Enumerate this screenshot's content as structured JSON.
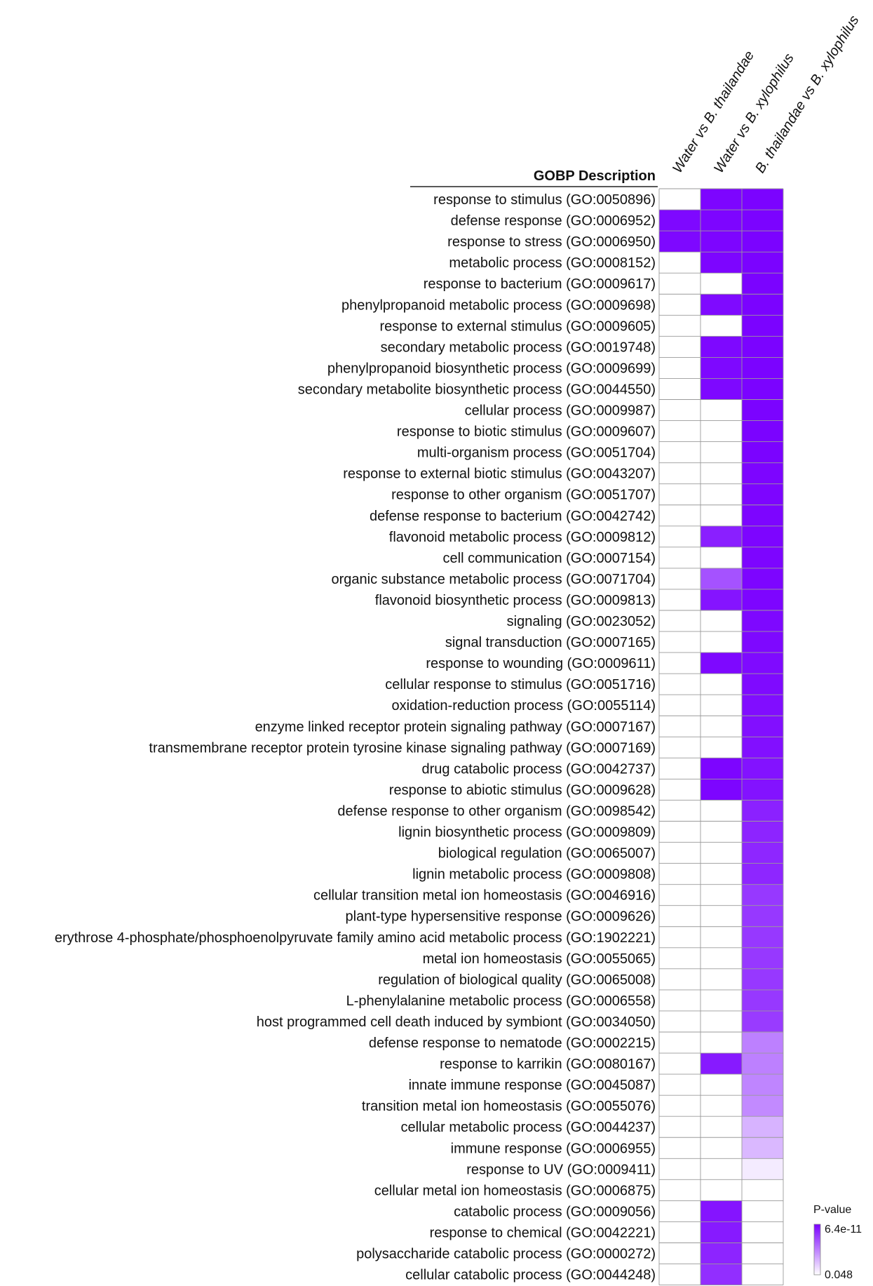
{
  "chart_data": {
    "type": "heatmap",
    "header": "GOBP Description",
    "columns": [
      "Water vs B. thailandae",
      "Water vs B. xylophilus",
      "B. thailandae vs B. xylophilus"
    ],
    "rows": [
      "response to stimulus (GO:0050896)",
      "defense response (GO:0006952)",
      "response to stress (GO:0006950)",
      "metabolic process (GO:0008152)",
      "response to bacterium (GO:0009617)",
      "phenylpropanoid metabolic process (GO:0009698)",
      "response to external stimulus (GO:0009605)",
      "secondary metabolic process (GO:0019748)",
      "phenylpropanoid biosynthetic process (GO:0009699)",
      "secondary metabolite biosynthetic process (GO:0044550)",
      "cellular process (GO:0009987)",
      "response to biotic stimulus (GO:0009607)",
      "multi-organism process (GO:0051704)",
      "response to external biotic stimulus (GO:0043207)",
      "response to other organism (GO:0051707)",
      "defense response to bacterium (GO:0042742)",
      "flavonoid metabolic process (GO:0009812)",
      "cell communication (GO:0007154)",
      "organic substance metabolic process (GO:0071704)",
      "flavonoid biosynthetic process (GO:0009813)",
      "signaling (GO:0023052)",
      "signal transduction (GO:0007165)",
      "response to wounding (GO:0009611)",
      "cellular response to stimulus (GO:0051716)",
      "oxidation-reduction process (GO:0055114)",
      "enzyme linked receptor protein signaling pathway (GO:0007167)",
      "transmembrane receptor protein tyrosine kinase signaling pathway (GO:0007169)",
      "drug catabolic process (GO:0042737)",
      "response to abiotic stimulus (GO:0009628)",
      "defense response to other organism (GO:0098542)",
      "lignin biosynthetic process (GO:0009809)",
      "biological regulation (GO:0065007)",
      "lignin metabolic process (GO:0009808)",
      "cellular transition metal ion homeostasis (GO:0046916)",
      "plant-type hypersensitive response (GO:0009626)",
      "erythrose 4-phosphate/phosphoenolpyruvate family amino acid metabolic process (GO:1902221)",
      "metal ion homeostasis (GO:0055065)",
      "regulation of biological quality (GO:0065008)",
      "L-phenylalanine metabolic process (GO:0006558)",
      "host programmed cell death induced by symbiont (GO:0034050)",
      "defense response to nematode (GO:0002215)",
      "response to karrikin (GO:0080167)",
      "innate immune response (GO:0045087)",
      "transition metal ion homeostasis (GO:0055076)",
      "cellular metabolic process (GO:0044237)",
      "immune response (GO:0006955)",
      "response to UV (GO:0009411)",
      "cellular metal ion homeostasis (GO:0006875)",
      "catabolic process (GO:0009056)",
      "response to chemical (GO:0042221)",
      "polysaccharide catabolic process (GO:0000272)",
      "cellular catabolic process (GO:0044248)"
    ],
    "intensity": [
      [
        0,
        0.98,
        0.99
      ],
      [
        0.97,
        0.98,
        0.99
      ],
      [
        0.97,
        0.98,
        0.99
      ],
      [
        0,
        0.98,
        0.99
      ],
      [
        0,
        0,
        0.99
      ],
      [
        0,
        0.96,
        0.99
      ],
      [
        0,
        0,
        0.99
      ],
      [
        0,
        0.97,
        0.99
      ],
      [
        0,
        0.97,
        0.99
      ],
      [
        0,
        0.97,
        0.99
      ],
      [
        0,
        0,
        0.99
      ],
      [
        0,
        0,
        0.99
      ],
      [
        0,
        0,
        0.99
      ],
      [
        0,
        0,
        0.98
      ],
      [
        0,
        0,
        0.98
      ],
      [
        0,
        0,
        0.98
      ],
      [
        0,
        0.88,
        0.98
      ],
      [
        0,
        0,
        0.98
      ],
      [
        0,
        0.68,
        0.98
      ],
      [
        0,
        0.92,
        0.98
      ],
      [
        0,
        0,
        0.97
      ],
      [
        0,
        0,
        0.97
      ],
      [
        0,
        0.97,
        0.96
      ],
      [
        0,
        0,
        0.96
      ],
      [
        0,
        0,
        0.95
      ],
      [
        0,
        0,
        0.94
      ],
      [
        0,
        0,
        0.94
      ],
      [
        0,
        0.98,
        0.93
      ],
      [
        0,
        0.98,
        0.93
      ],
      [
        0,
        0,
        0.87
      ],
      [
        0,
        0,
        0.86
      ],
      [
        0,
        0,
        0.85
      ],
      [
        0,
        0,
        0.85
      ],
      [
        0,
        0,
        0.78
      ],
      [
        0,
        0,
        0.78
      ],
      [
        0,
        0,
        0.78
      ],
      [
        0,
        0,
        0.78
      ],
      [
        0,
        0,
        0.78
      ],
      [
        0,
        0,
        0.78
      ],
      [
        0,
        0,
        0.77
      ],
      [
        0,
        0,
        0.5
      ],
      [
        0,
        0.9,
        0.5
      ],
      [
        0,
        0,
        0.48
      ],
      [
        0,
        0,
        0.46
      ],
      [
        0,
        0,
        0.3
      ],
      [
        0,
        0,
        0.28
      ],
      [
        0,
        0,
        0.08
      ],
      [
        0,
        0,
        0
      ],
      [
        0,
        0.92,
        0
      ],
      [
        0,
        0.9,
        0
      ],
      [
        0,
        0.86,
        0
      ],
      [
        0,
        0.82,
        0
      ]
    ],
    "color_scale": {
      "high": "#7a00ff",
      "low": "#ffffff",
      "grid": "#9a9a9a"
    },
    "legend": {
      "title": "P-value",
      "max_label": "6.4e-11",
      "min_label": "0.048",
      "placement": "bottom-right"
    }
  }
}
